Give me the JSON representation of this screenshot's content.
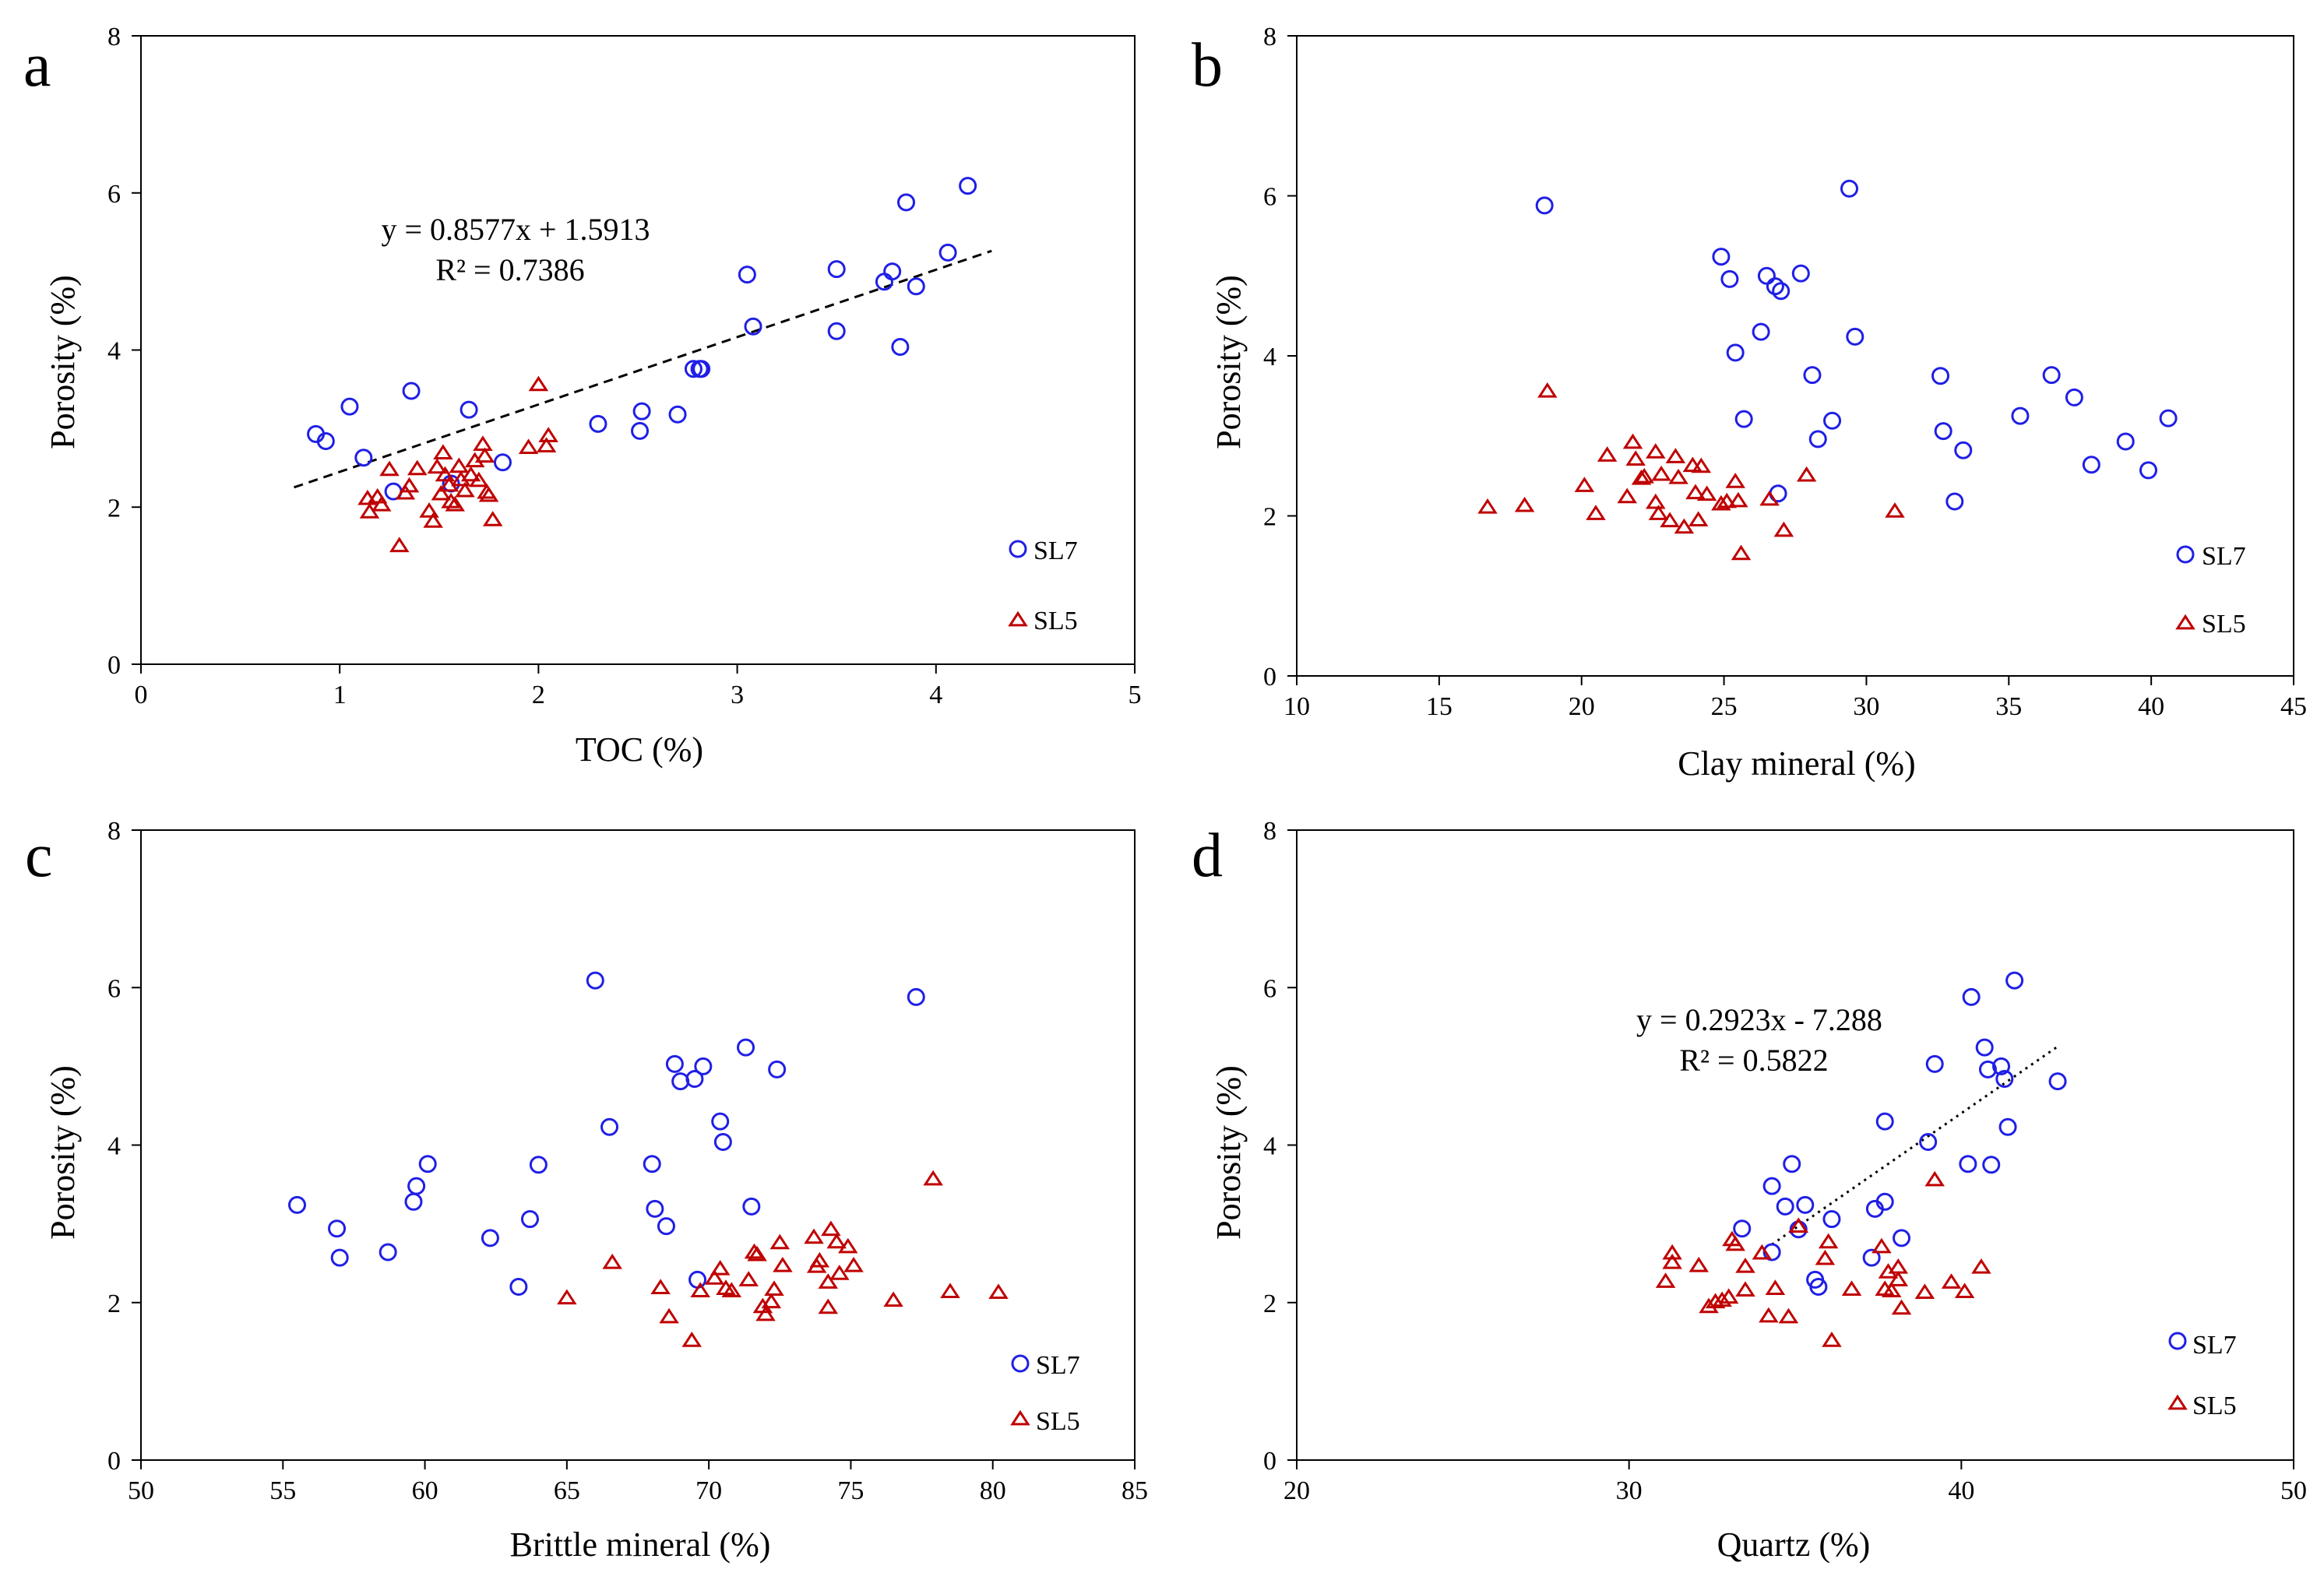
{
  "colors": {
    "SL7": "#1f1fe6",
    "SL5": "#c00000",
    "axis": "#000000",
    "trendline": "#000000"
  },
  "chart_data": [
    {
      "type": "scatter",
      "panel": "a",
      "xlabel": "TOC (%)",
      "ylabel": "Porosity (%)",
      "xlim": [
        0,
        5
      ],
      "ylim": [
        0,
        8
      ],
      "xticks": [
        "0",
        "1",
        "2",
        "3",
        "4",
        "5"
      ],
      "yticks": [
        "0",
        "2",
        "4",
        "6",
        "8"
      ],
      "legend": [
        "SL7",
        "SL5"
      ],
      "series": [
        {
          "name": "SL7",
          "marker": "circle",
          "points": [
            [
              0.88,
              2.93
            ],
            [
              0.93,
              2.84
            ],
            [
              1.05,
              3.28
            ],
            [
              1.12,
              2.63
            ],
            [
              1.27,
              2.2
            ],
            [
              1.36,
              3.48
            ],
            [
              1.56,
              2.3
            ],
            [
              1.65,
              3.24
            ],
            [
              1.82,
              2.57
            ],
            [
              2.3,
              3.06
            ],
            [
              2.51,
              2.97
            ],
            [
              2.52,
              3.22
            ],
            [
              2.7,
              3.18
            ],
            [
              2.78,
              3.76
            ],
            [
              2.81,
              3.76
            ],
            [
              2.82,
              3.76
            ],
            [
              3.05,
              4.96
            ],
            [
              3.08,
              4.3
            ],
            [
              3.5,
              5.03
            ],
            [
              3.5,
              4.24
            ],
            [
              3.74,
              4.87
            ],
            [
              3.78,
              5.0
            ],
            [
              3.82,
              4.04
            ],
            [
              3.85,
              5.88
            ],
            [
              3.9,
              4.81
            ],
            [
              4.06,
              5.24
            ],
            [
              4.16,
              6.09
            ]
          ]
        },
        {
          "name": "SL5",
          "marker": "triangle",
          "points": [
            [
              1.14,
              2.1
            ],
            [
              1.15,
              1.93
            ],
            [
              1.19,
              2.12
            ],
            [
              1.21,
              2.02
            ],
            [
              1.25,
              2.47
            ],
            [
              1.3,
              1.5
            ],
            [
              1.33,
              2.17
            ],
            [
              1.35,
              2.26
            ],
            [
              1.39,
              2.48
            ],
            [
              1.45,
              1.94
            ],
            [
              1.47,
              1.81
            ],
            [
              1.49,
              2.5
            ],
            [
              1.51,
              2.16
            ],
            [
              1.52,
              2.68
            ],
            [
              1.53,
              2.4
            ],
            [
              1.55,
              2.27
            ],
            [
              1.56,
              2.06
            ],
            [
              1.58,
              2.02
            ],
            [
              1.6,
              2.51
            ],
            [
              1.61,
              2.34
            ],
            [
              1.63,
              2.2
            ],
            [
              1.66,
              2.4
            ],
            [
              1.68,
              2.58
            ],
            [
              1.7,
              2.33
            ],
            [
              1.72,
              2.79
            ],
            [
              1.73,
              2.64
            ],
            [
              1.74,
              2.18
            ],
            [
              1.75,
              2.14
            ],
            [
              1.77,
              1.83
            ],
            [
              1.95,
              2.75
            ],
            [
              2.0,
              3.55
            ],
            [
              2.04,
              2.77
            ],
            [
              2.05,
              2.9
            ]
          ]
        }
      ],
      "trendline": {
        "style": "dashed",
        "slope": 0.8577,
        "intercept": 1.5913,
        "x_range": [
          0.77,
          4.28
        ],
        "equation": "y = 0.8577x + 1.5913",
        "r2": "R² = 0.7386"
      }
    },
    {
      "type": "scatter",
      "panel": "b",
      "xlabel": "Clay mineral (%)",
      "ylabel": "Porosity (%)",
      "xlim": [
        10,
        45
      ],
      "ylim": [
        0,
        8
      ],
      "xticks": [
        "10",
        "15",
        "20",
        "25",
        "30",
        "35",
        "40",
        "45"
      ],
      "yticks": [
        "0",
        "2",
        "4",
        "6",
        "8"
      ],
      "legend": [
        "SL7",
        "SL5"
      ],
      "series": [
        {
          "name": "SL7",
          "marker": "circle",
          "points": [
            [
              18.7,
              5.88
            ],
            [
              24.9,
              5.24
            ],
            [
              25.2,
              4.96
            ],
            [
              25.4,
              4.04
            ],
            [
              25.7,
              3.21
            ],
            [
              26.3,
              4.3
            ],
            [
              26.5,
              5.0
            ],
            [
              26.8,
              4.87
            ],
            [
              26.9,
              2.28
            ],
            [
              27.0,
              4.81
            ],
            [
              27.7,
              5.03
            ],
            [
              28.1,
              3.76
            ],
            [
              28.3,
              2.96
            ],
            [
              28.8,
              3.19
            ],
            [
              29.4,
              6.09
            ],
            [
              29.6,
              4.24
            ],
            [
              32.6,
              3.75
            ],
            [
              32.7,
              3.06
            ],
            [
              33.1,
              2.18
            ],
            [
              33.4,
              2.82
            ],
            [
              35.4,
              3.25
            ],
            [
              36.5,
              3.76
            ],
            [
              37.3,
              3.48
            ],
            [
              37.9,
              2.64
            ],
            [
              39.1,
              2.93
            ],
            [
              39.9,
              2.57
            ],
            [
              40.6,
              3.22
            ]
          ]
        },
        {
          "name": "SL5",
          "marker": "triangle",
          "points": [
            [
              16.7,
              2.1
            ],
            [
              18.0,
              2.12
            ],
            [
              18.8,
              3.55
            ],
            [
              20.1,
              2.37
            ],
            [
              20.5,
              2.02
            ],
            [
              20.9,
              2.75
            ],
            [
              21.6,
              2.23
            ],
            [
              21.8,
              2.91
            ],
            [
              21.9,
              2.7
            ],
            [
              22.1,
              2.46
            ],
            [
              22.2,
              2.48
            ],
            [
              22.6,
              2.79
            ],
            [
              22.6,
              2.16
            ],
            [
              22.7,
              2.02
            ],
            [
              22.8,
              2.51
            ],
            [
              23.1,
              1.93
            ],
            [
              23.3,
              2.73
            ],
            [
              23.4,
              2.47
            ],
            [
              23.6,
              1.85
            ],
            [
              23.9,
              2.62
            ],
            [
              24.0,
              2.28
            ],
            [
              24.1,
              1.94
            ],
            [
              24.2,
              2.61
            ],
            [
              24.4,
              2.26
            ],
            [
              24.9,
              2.14
            ],
            [
              25.1,
              2.17
            ],
            [
              25.4,
              2.42
            ],
            [
              25.5,
              2.18
            ],
            [
              25.6,
              1.52
            ],
            [
              26.6,
              2.2
            ],
            [
              27.1,
              1.81
            ],
            [
              27.9,
              2.5
            ],
            [
              31.0,
              2.05
            ]
          ]
        }
      ]
    },
    {
      "type": "scatter",
      "panel": "c",
      "xlabel": "Brittle mineral (%)",
      "ylabel": "Porosity (%)",
      "xlim": [
        50,
        85
      ],
      "ylim": [
        0,
        8
      ],
      "xticks": [
        "50",
        "55",
        "60",
        "65",
        "70",
        "75",
        "80",
        "85"
      ],
      "yticks": [
        "0",
        "2",
        "4",
        "6",
        "8"
      ],
      "legend": [
        "SL7",
        "SL5"
      ],
      "series": [
        {
          "name": "SL7",
          "marker": "circle",
          "points": [
            [
              55.5,
              3.24
            ],
            [
              56.9,
              2.94
            ],
            [
              57.0,
              2.57
            ],
            [
              58.7,
              2.64
            ],
            [
              59.6,
              3.28
            ],
            [
              59.7,
              3.48
            ],
            [
              60.1,
              3.76
            ],
            [
              62.3,
              2.82
            ],
            [
              63.3,
              2.2
            ],
            [
              63.7,
              3.06
            ],
            [
              64.0,
              3.75
            ],
            [
              66.0,
              6.09
            ],
            [
              66.5,
              4.23
            ],
            [
              68.0,
              3.76
            ],
            [
              68.1,
              3.19
            ],
            [
              68.5,
              2.97
            ],
            [
              68.8,
              5.03
            ],
            [
              69.0,
              4.81
            ],
            [
              69.5,
              4.84
            ],
            [
              69.6,
              2.29
            ],
            [
              69.8,
              5.0
            ],
            [
              70.4,
              4.3
            ],
            [
              70.5,
              4.04
            ],
            [
              71.3,
              5.24
            ],
            [
              71.5,
              3.22
            ],
            [
              72.4,
              4.96
            ],
            [
              77.3,
              5.88
            ]
          ]
        },
        {
          "name": "SL5",
          "marker": "triangle",
          "points": [
            [
              65.0,
              2.05
            ],
            [
              66.6,
              2.5
            ],
            [
              68.3,
              2.18
            ],
            [
              68.6,
              1.81
            ],
            [
              69.4,
              1.51
            ],
            [
              69.7,
              2.14
            ],
            [
              70.2,
              2.3
            ],
            [
              70.4,
              2.42
            ],
            [
              70.6,
              2.17
            ],
            [
              70.8,
              2.14
            ],
            [
              71.4,
              2.28
            ],
            [
              71.6,
              2.63
            ],
            [
              71.7,
              2.6
            ],
            [
              71.9,
              1.94
            ],
            [
              72.0,
              1.84
            ],
            [
              72.2,
              2.0
            ],
            [
              72.3,
              2.16
            ],
            [
              72.5,
              2.75
            ],
            [
              72.6,
              2.46
            ],
            [
              73.7,
              2.82
            ],
            [
              73.8,
              2.45
            ],
            [
              73.9,
              2.52
            ],
            [
              74.2,
              2.25
            ],
            [
              74.2,
              1.93
            ],
            [
              74.3,
              2.92
            ],
            [
              74.5,
              2.76
            ],
            [
              74.6,
              2.36
            ],
            [
              74.9,
              2.7
            ],
            [
              75.1,
              2.46
            ],
            [
              76.5,
              2.02
            ],
            [
              77.9,
              3.56
            ],
            [
              78.5,
              2.13
            ],
            [
              80.2,
              2.12
            ]
          ]
        }
      ]
    },
    {
      "type": "scatter",
      "panel": "d",
      "xlabel": "Quartz (%)",
      "ylabel": "Porosity (%)",
      "xlim": [
        20,
        50
      ],
      "ylim": [
        0,
        8
      ],
      "xticks": [
        "20",
        "30",
        "40",
        "50"
      ],
      "yticks": [
        "0",
        "2",
        "4",
        "6",
        "8"
      ],
      "legend": [
        "SL7",
        "SL5"
      ],
      "series": [
        {
          "name": "SL7",
          "marker": "circle",
          "points": [
            [
              33.4,
              2.94
            ],
            [
              34.3,
              2.64
            ],
            [
              34.3,
              3.48
            ],
            [
              34.7,
              3.22
            ],
            [
              34.9,
              3.76
            ],
            [
              35.1,
              2.93
            ],
            [
              35.3,
              3.24
            ],
            [
              35.6,
              2.29
            ],
            [
              35.7,
              2.2
            ],
            [
              36.1,
              3.06
            ],
            [
              37.3,
              2.57
            ],
            [
              37.4,
              3.19
            ],
            [
              37.7,
              3.28
            ],
            [
              37.7,
              4.3
            ],
            [
              38.2,
              2.82
            ],
            [
              39.0,
              4.04
            ],
            [
              39.2,
              5.03
            ],
            [
              40.2,
              3.76
            ],
            [
              40.3,
              5.88
            ],
            [
              40.7,
              5.24
            ],
            [
              40.8,
              4.96
            ],
            [
              40.9,
              3.75
            ],
            [
              41.2,
              5.0
            ],
            [
              41.3,
              4.84
            ],
            [
              41.4,
              4.23
            ],
            [
              41.6,
              6.09
            ],
            [
              42.9,
              4.81
            ]
          ]
        },
        {
          "name": "SL5",
          "marker": "triangle",
          "points": [
            [
              31.1,
              2.26
            ],
            [
              31.3,
              2.62
            ],
            [
              31.3,
              2.5
            ],
            [
              32.1,
              2.46
            ],
            [
              32.4,
              1.94
            ],
            [
              32.6,
              2.0
            ],
            [
              32.8,
              2.02
            ],
            [
              33.0,
              2.06
            ],
            [
              33.1,
              2.79
            ],
            [
              33.2,
              2.73
            ],
            [
              33.5,
              2.15
            ],
            [
              33.5,
              2.45
            ],
            [
              34.0,
              2.62
            ],
            [
              34.2,
              1.82
            ],
            [
              34.4,
              2.17
            ],
            [
              34.8,
              1.81
            ],
            [
              35.1,
              2.96
            ],
            [
              35.9,
              2.55
            ],
            [
              36.0,
              2.76
            ],
            [
              36.1,
              1.51
            ],
            [
              36.7,
              2.16
            ],
            [
              37.6,
              2.7
            ],
            [
              37.7,
              2.16
            ],
            [
              37.8,
              2.38
            ],
            [
              37.9,
              2.14
            ],
            [
              38.1,
              2.28
            ],
            [
              38.1,
              2.44
            ],
            [
              38.2,
              1.92
            ],
            [
              38.9,
              2.12
            ],
            [
              39.2,
              3.55
            ],
            [
              39.7,
              2.25
            ],
            [
              40.1,
              2.13
            ],
            [
              40.6,
              2.44
            ]
          ]
        }
      ],
      "trendline": {
        "style": "dotted",
        "slope": 0.2923,
        "intercept": -7.288,
        "x_range": [
          34.3,
          42.9
        ],
        "equation": "y = 0.2923x - 7.288",
        "r2": "R² = 0.5822"
      }
    }
  ]
}
